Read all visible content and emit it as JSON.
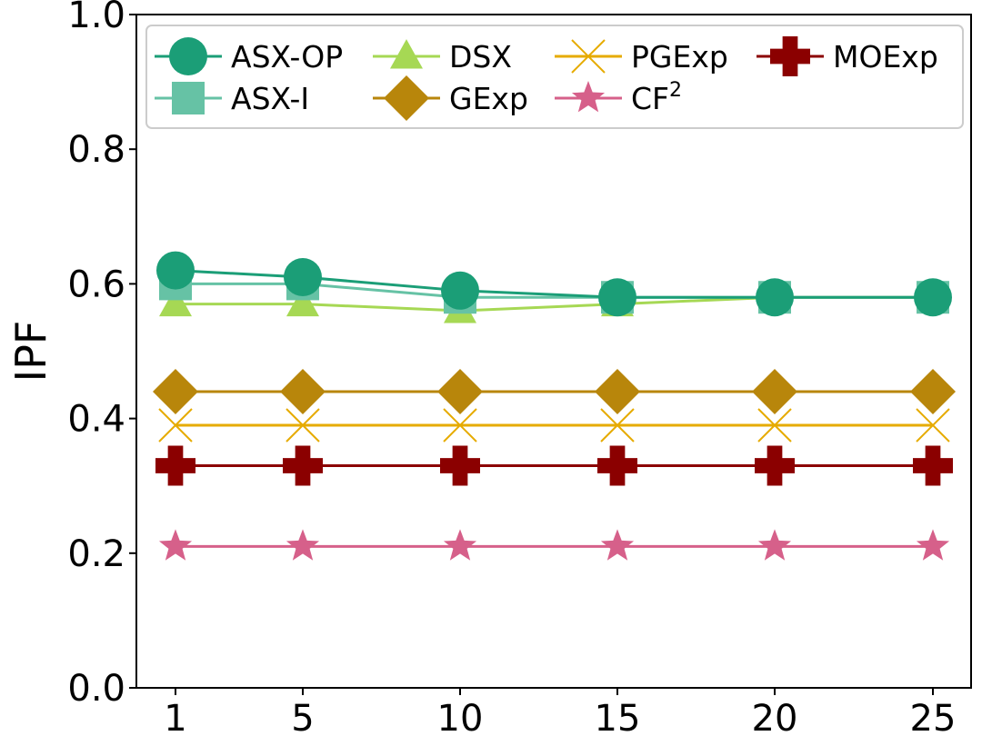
{
  "chart_data": {
    "type": "line",
    "title": "",
    "xlabel": "",
    "ylabel": "IPF",
    "categories": [
      "1",
      "5",
      "10",
      "15",
      "20",
      "25"
    ],
    "yticks": [
      "0.0",
      "0.2",
      "0.4",
      "0.6",
      "0.8",
      "1.0"
    ],
    "ylim": [
      0.0,
      1.0
    ],
    "legend_position": "top",
    "series": [
      {
        "name": "ASX-OP",
        "label": "ASX-OP",
        "color": "#1b9e77",
        "marker": "circle",
        "values": [
          0.62,
          0.61,
          0.59,
          0.58,
          0.58,
          0.58
        ]
      },
      {
        "name": "ASX-I",
        "label": "ASX-I",
        "color": "#66c2a5",
        "marker": "square",
        "values": [
          0.6,
          0.6,
          0.58,
          0.58,
          0.58,
          0.58
        ]
      },
      {
        "name": "DSX",
        "label": "DSX",
        "color": "#a6d854",
        "marker": "triangle",
        "values": [
          0.57,
          0.57,
          0.56,
          0.57,
          0.58,
          0.58
        ]
      },
      {
        "name": "GExp",
        "label": "GExp",
        "color": "#b8860b",
        "marker": "diamond",
        "values": [
          0.44,
          0.44,
          0.44,
          0.44,
          0.44,
          0.44
        ]
      },
      {
        "name": "PGExp",
        "label": "PGExp",
        "color": "#e6ab02",
        "marker": "x",
        "values": [
          0.39,
          0.39,
          0.39,
          0.39,
          0.39,
          0.39
        ]
      },
      {
        "name": "CF2",
        "label": "CF",
        "label_sup": "2",
        "color": "#d6608a",
        "marker": "star",
        "values": [
          0.21,
          0.21,
          0.21,
          0.21,
          0.21,
          0.21
        ]
      },
      {
        "name": "MOExp",
        "label": "MOExp",
        "color": "#8b0000",
        "marker": "plus",
        "values": [
          0.33,
          0.33,
          0.33,
          0.33,
          0.33,
          0.33
        ]
      }
    ]
  }
}
